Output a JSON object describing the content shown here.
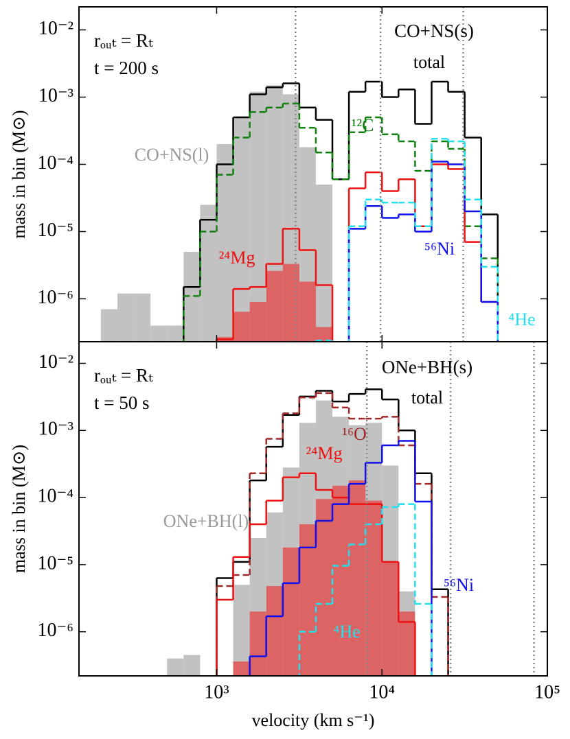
{
  "chart_data": [
    {
      "type": "histogram",
      "bins": [
        199.5,
        251.2,
        316.2,
        398.1,
        501.2,
        631,
        794.3,
        1000,
        1258.9,
        1584.9,
        1995.3,
        2511.9,
        3162.3,
        3981.1,
        5011.9,
        6309.6,
        7943.3,
        10000,
        12589,
        15849,
        19953,
        25119,
        31623,
        39811,
        50119
      ],
      "xlim": [
        147,
        100000
      ],
      "xticks": [
        1000,
        10000,
        100000
      ],
      "log_x": true,
      "ylim": [
        2.3e-07,
        0.022
      ],
      "log_y": true,
      "yticks": [
        {
          "value": 0.01,
          "label": "10⁻²"
        },
        {
          "value": 0.001,
          "label": "10⁻³"
        },
        {
          "value": 0.0001,
          "label": "10⁻⁴"
        },
        {
          "value": 1e-05,
          "label": "10⁻⁵"
        },
        {
          "value": 1e-06,
          "label": "10⁻⁶"
        }
      ],
      "ylabel": "mass in bin (M⊙)",
      "vlines": [
        3000,
        9800,
        31000
      ],
      "annotations": [
        "rₒᵤₜ = Rₜ",
        "t = 200 s",
        "CO+NS(s)"
      ],
      "series": [
        {
          "name": "CO+NS(l)",
          "color": "#bbbbbb",
          "fill": true,
          "values": [
            7e-07,
            1.2e-06,
            1.2e-06,
            4e-07,
            4e-07,
            5e-06,
            2.5e-05,
            0.0002,
            0.0005,
            0.0012,
            0.0015,
            0.0011,
            0.00018,
            5e-05,
            null,
            null,
            null,
            null,
            null,
            null,
            null,
            null,
            null,
            null
          ]
        },
        {
          "color": "#e05a5a",
          "fill": true,
          "values": [
            null,
            null,
            null,
            null,
            null,
            null,
            null,
            2.7e-07,
            6.4e-07,
            9e-07,
            2.6e-06,
            3.3e-06,
            1.8e-06,
            3.8e-07,
            null,
            null,
            null,
            null,
            null,
            null,
            null,
            null,
            null,
            null
          ]
        },
        {
          "name": "total",
          "color": "#000000",
          "values": [
            null,
            null,
            null,
            null,
            null,
            1.5e-06,
            1.5e-05,
            0.0001,
            0.0005,
            0.0011,
            0.0014,
            0.0016,
            0.0007,
            0.00046,
            6e-05,
            0.0012,
            0.0017,
            0.001,
            0.0013,
            0.0004,
            0.0017,
            0.0012,
            0.00025,
            1.8e-05
          ]
        },
        {
          "name": "¹²C",
          "color": "#108010",
          "dashed": true,
          "values": [
            null,
            null,
            null,
            null,
            null,
            1.1e-06,
            1e-05,
            7e-05,
            0.00025,
            0.0006,
            0.0007,
            0.0008,
            0.00035,
            0.00015,
            6e-05,
            0.0003,
            0.0005,
            0.00028,
            0.00022,
            8e-05,
            0.00022,
            0.00017,
            1.2e-05,
            4e-06
          ]
        },
        {
          "name": "²⁴Mg",
          "color": "#ee1111",
          "values": [
            null,
            null,
            null,
            null,
            null,
            null,
            null,
            2.5e-07,
            1.4e-06,
            1.5e-06,
            3.3e-06,
            1.1e-05,
            5.3e-06,
            1.6e-06,
            null,
            4.4e-05,
            7.6e-05,
            4e-05,
            6e-05,
            1.2e-05,
            0.0001,
            8.5e-05,
            7e-06,
            9e-07
          ]
        },
        {
          "name": "⁵⁶Ni",
          "color": "#1010ee",
          "values": [
            null,
            null,
            null,
            null,
            null,
            null,
            null,
            null,
            null,
            null,
            null,
            null,
            null,
            null,
            null,
            1.1e-05,
            2.4e-05,
            1.6e-05,
            1.8e-05,
            1e-05,
            0.00011,
            0.0001,
            2e-05,
            9e-07
          ]
        },
        {
          "name": "⁴He",
          "color": "#22e0ee",
          "dashed": true,
          "values": [
            null,
            null,
            null,
            null,
            null,
            null,
            null,
            null,
            null,
            null,
            null,
            null,
            null,
            2.4e-07,
            null,
            1.2e-05,
            3e-05,
            2.7e-05,
            2.7e-05,
            1.2e-05,
            0.00024,
            0.00022,
            3e-05,
            3e-06
          ]
        }
      ]
    },
    {
      "type": "histogram",
      "bins": [
        199.5,
        251.2,
        316.2,
        398.1,
        501.2,
        631,
        794.3,
        1000,
        1258.9,
        1584.9,
        1995.3,
        2511.9,
        3162.3,
        3981.1,
        5011.9,
        6309.6,
        7943.3,
        10000,
        12589,
        15849,
        19953,
        25119,
        31623,
        39811,
        50119
      ],
      "xlim": [
        147,
        100000
      ],
      "log_x": true,
      "xticks": [
        {
          "value": 1000,
          "label": "10³"
        },
        {
          "value": 10000,
          "label": "10⁴"
        },
        {
          "value": 100000,
          "label": "10⁵"
        }
      ],
      "xlabel": "velocity (km s⁻¹)",
      "ylim": [
        2.2e-07,
        0.021
      ],
      "log_y": true,
      "yticks": [
        {
          "value": 0.01,
          "label": "10⁻²"
        },
        {
          "value": 0.001,
          "label": "10⁻³"
        },
        {
          "value": 0.0001,
          "label": "10⁻⁴"
        },
        {
          "value": 1e-05,
          "label": "10⁻⁵"
        },
        {
          "value": 1e-06,
          "label": "10⁻⁶"
        }
      ],
      "ylabel": "mass in bin (M⊙)",
      "vlines": [
        8100,
        26000,
        83000
      ],
      "annotations": [
        "rₒᵤₜ = Rₜ",
        "t = 50 s",
        "ONe+BH(s)"
      ],
      "series": [
        {
          "name": "ONe+BH(l)",
          "color": "#bbbbbb",
          "fill": true,
          "values": [
            null,
            null,
            null,
            null,
            4e-07,
            4.5e-07,
            null,
            null,
            5e-06,
            2.5e-05,
            6e-05,
            0.00028,
            0.0013,
            0.0028,
            0.0016,
            0.0012,
            0.0013,
            0.0003,
            4e-06,
            null,
            null,
            null,
            null,
            null
          ]
        },
        {
          "color": "#e05a5a",
          "fill": true,
          "values": [
            null,
            null,
            null,
            null,
            null,
            null,
            null,
            null,
            3.6e-07,
            2e-06,
            4.8e-06,
            1.8e-05,
            4e-05,
            9.5e-05,
            0.00015,
            0.00018,
            9e-05,
            1.1e-05,
            2e-06,
            null,
            null,
            null,
            null,
            null
          ]
        },
        {
          "name": "total",
          "color": "#000000",
          "values": [
            null,
            null,
            null,
            null,
            null,
            null,
            null,
            6.3e-06,
            1.1e-05,
            0.00018,
            0.00057,
            0.0017,
            0.0032,
            0.0039,
            0.0027,
            0.0035,
            0.0041,
            0.0029,
            0.001,
            0.00023,
            4.3e-06,
            null,
            null,
            null
          ]
        },
        {
          "name": "¹⁶O",
          "color": "#a02828",
          "dashed": true,
          "values": [
            null,
            null,
            null,
            null,
            null,
            null,
            null,
            4.8e-06,
            7e-06,
            0.00023,
            0.00075,
            0.0018,
            0.0031,
            0.0036,
            0.0022,
            0.0015,
            0.0015,
            0.0016,
            0.0006,
            0.00016,
            3.3e-06,
            null,
            null,
            null
          ]
        },
        {
          "name": "²⁴Mg",
          "color": "#ee1111",
          "values": [
            null,
            null,
            null,
            null,
            null,
            null,
            null,
            3e-06,
            1.3e-05,
            4e-05,
            9e-05,
            0.0002,
            0.00023,
            0.00013,
            0.0001,
            8e-05,
            8e-05,
            1.1e-05,
            1.4e-06,
            null,
            null,
            null,
            null,
            null
          ]
        },
        {
          "name": "⁵⁶Ni",
          "color": "#1010ee",
          "values": [
            null,
            null,
            null,
            null,
            null,
            null,
            null,
            null,
            null,
            4.3e-07,
            1.7e-06,
            5.3e-06,
            1.8e-05,
            4.5e-05,
            8e-05,
            0.00016,
            0.00033,
            0.0006,
            0.0007,
            8.7e-05,
            null,
            null,
            null,
            null
          ]
        },
        {
          "name": "⁴He",
          "color": "#22e0ee",
          "dashed": true,
          "values": [
            null,
            null,
            null,
            null,
            null,
            null,
            null,
            null,
            null,
            null,
            null,
            null,
            1e-06,
            2.6e-06,
            9.6e-06,
            2e-05,
            4e-05,
            7.2e-05,
            8e-05,
            2.6e-06,
            null,
            null,
            null,
            null
          ]
        }
      ]
    }
  ]
}
